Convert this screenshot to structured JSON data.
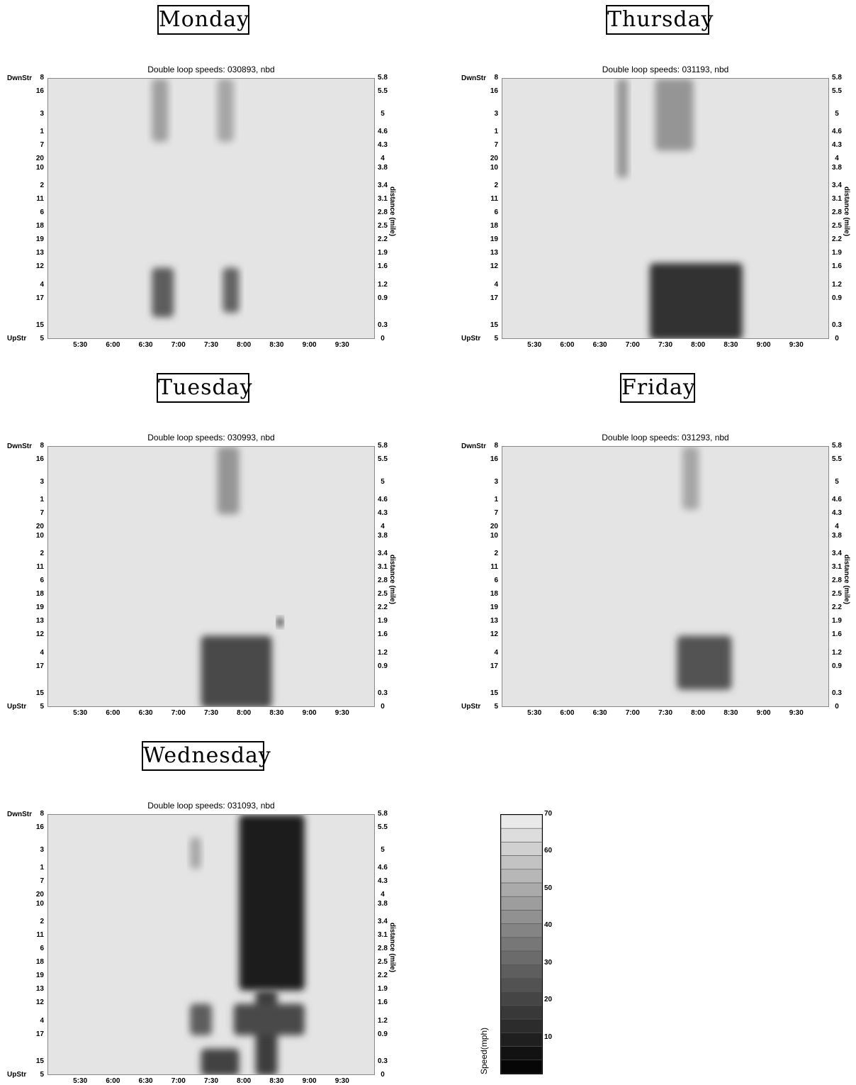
{
  "y_detectors": [
    "8",
    "16",
    "3",
    "1",
    "7",
    "20",
    "10",
    "2",
    "11",
    "6",
    "18",
    "19",
    "13",
    "12",
    "4",
    "17",
    "15",
    "5"
  ],
  "y_miles": [
    5.8,
    5.5,
    5,
    4.6,
    4.3,
    4,
    3.8,
    3.4,
    3.1,
    2.8,
    2.5,
    2.2,
    1.9,
    1.6,
    1.2,
    0.9,
    0.3,
    0
  ],
  "y_miles_labels": [
    "5.8",
    "5.5",
    "5",
    "4.6",
    "4.3",
    "4",
    "3.8",
    "3.4",
    "3.1",
    "2.8",
    "2.5",
    "2.2",
    "1.9",
    "1.6",
    "1.2",
    "0.9",
    "0.3",
    "0"
  ],
  "x_ticks": [
    "5:30",
    "6:00",
    "6:30",
    "7:00",
    "7:30",
    "8:00",
    "8:30",
    "9:00",
    "9:30"
  ],
  "downstream_label": "DwnStr",
  "upstream_label": "UpStr",
  "right_axis_label": "distance (mile)",
  "panels": [
    {
      "day": "Monday",
      "title": "Double loop speeds: 030893, nbd"
    },
    {
      "day": "Thursday",
      "title": "Double loop speeds: 031193, nbd"
    },
    {
      "day": "Tuesday",
      "title": "Double loop speeds: 030993, nbd"
    },
    {
      "day": "Friday",
      "title": "Double loop speeds: 031293, nbd"
    },
    {
      "day": "Wednesday",
      "title": "Double loop speeds: 031093, nbd"
    }
  ],
  "colorbar": {
    "label": "Speed(mph)",
    "ticks": [
      "70",
      "60",
      "50",
      "40",
      "30",
      "20",
      "10"
    ],
    "min": 0,
    "max": 70
  },
  "chart_data": [
    {
      "type": "heatmap",
      "title": "Double loop speeds: 030893, nbd",
      "ylabel": "distance (mile)",
      "zlabel": "Speed(mph)",
      "zlim": [
        0,
        70
      ],
      "x_range": [
        "5:00",
        "10:00"
      ],
      "y_range": [
        0,
        5.8
      ],
      "congestion": [
        {
          "time_from": "6:35",
          "time_to": "6:55",
          "mile_from": 0.5,
          "mile_to": 1.6,
          "speed": 28
        },
        {
          "time_from": "6:35",
          "time_to": "6:50",
          "mile_from": 4.4,
          "mile_to": 5.8,
          "speed": 48
        },
        {
          "time_from": "7:40",
          "time_to": "7:55",
          "mile_from": 0.6,
          "mile_to": 1.6,
          "speed": 30
        },
        {
          "time_from": "7:35",
          "time_to": "7:50",
          "mile_from": 4.4,
          "mile_to": 5.8,
          "speed": 50
        }
      ]
    },
    {
      "type": "heatmap",
      "title": "Double loop speeds: 031193, nbd",
      "ylabel": "distance (mile)",
      "zlabel": "Speed(mph)",
      "zlim": [
        0,
        70
      ],
      "x_range": [
        "5:00",
        "10:00"
      ],
      "y_range": [
        0,
        5.8
      ],
      "congestion": [
        {
          "time_from": "6:45",
          "time_to": "6:55",
          "mile_from": 3.6,
          "mile_to": 5.8,
          "speed": 45
        },
        {
          "time_from": "7:20",
          "time_to": "7:55",
          "mile_from": 4.2,
          "mile_to": 5.8,
          "speed": 45
        },
        {
          "time_from": "7:15",
          "time_to": "8:40",
          "mile_from": 0,
          "mile_to": 1.7,
          "speed": 15
        }
      ]
    },
    {
      "type": "heatmap",
      "title": "Double loop speeds: 030993, nbd",
      "ylabel": "distance (mile)",
      "zlabel": "Speed(mph)",
      "zlim": [
        0,
        70
      ],
      "x_range": [
        "5:00",
        "10:00"
      ],
      "y_range": [
        0,
        5.8
      ],
      "congestion": [
        {
          "time_from": "7:35",
          "time_to": "7:55",
          "mile_from": 4.3,
          "mile_to": 5.8,
          "speed": 45
        },
        {
          "time_from": "7:20",
          "time_to": "8:25",
          "mile_from": 0,
          "mile_to": 1.6,
          "speed": 22
        },
        {
          "time_from": "8:30",
          "time_to": "8:35",
          "mile_from": 1.8,
          "mile_to": 2.0,
          "speed": 3
        }
      ]
    },
    {
      "type": "heatmap",
      "title": "Double loop speeds: 031293, nbd",
      "ylabel": "distance (mile)",
      "zlabel": "Speed(mph)",
      "zlim": [
        0,
        70
      ],
      "x_range": [
        "5:00",
        "10:00"
      ],
      "y_range": [
        0,
        5.8
      ],
      "congestion": [
        {
          "time_from": "7:45",
          "time_to": "8:00",
          "mile_from": 4.4,
          "mile_to": 5.8,
          "speed": 50
        },
        {
          "time_from": "7:40",
          "time_to": "8:30",
          "mile_from": 0.4,
          "mile_to": 1.6,
          "speed": 25
        }
      ]
    },
    {
      "type": "heatmap",
      "title": "Double loop speeds: 031093, nbd",
      "ylabel": "distance (mile)",
      "zlabel": "Speed(mph)",
      "zlim": [
        0,
        70
      ],
      "x_range": [
        "5:00",
        "10:00"
      ],
      "y_range": [
        0,
        5.8
      ],
      "congestion": [
        {
          "time_from": "7:55",
          "time_to": "8:55",
          "mile_from": 1.9,
          "mile_to": 5.8,
          "speed": 8
        },
        {
          "time_from": "8:10",
          "time_to": "8:30",
          "mile_from": 0,
          "mile_to": 1.9,
          "speed": 18
        },
        {
          "time_from": "7:10",
          "time_to": "7:30",
          "mile_from": 0.9,
          "mile_to": 1.6,
          "speed": 28
        },
        {
          "time_from": "7:50",
          "time_to": "8:55",
          "mile_from": 0.9,
          "mile_to": 1.6,
          "speed": 22
        },
        {
          "time_from": "7:20",
          "time_to": "7:55",
          "mile_from": 0,
          "mile_to": 0.6,
          "speed": 20
        },
        {
          "time_from": "7:10",
          "time_to": "7:20",
          "mile_from": 4.6,
          "mile_to": 5.3,
          "speed": 50
        }
      ]
    }
  ]
}
